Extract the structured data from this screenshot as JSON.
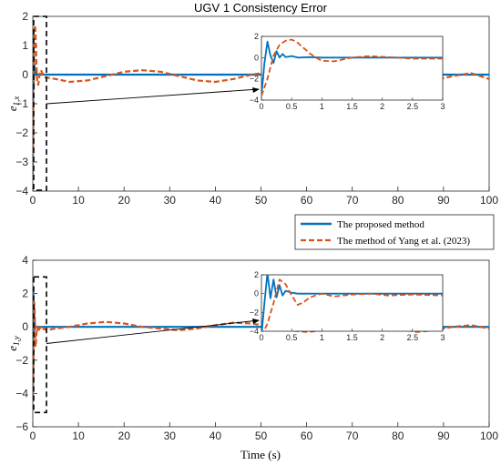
{
  "chart_data": [
    {
      "type": "line",
      "title": "UGV 1 Consistency Error",
      "ylabel_main": "e",
      "ylabel_sub": "1,x",
      "xlim": [
        0,
        100
      ],
      "ylim": [
        -4,
        2
      ],
      "xticks": [
        0,
        10,
        20,
        30,
        40,
        50,
        60,
        70,
        80,
        90,
        100
      ],
      "yticks": [
        -4,
        -3,
        -2,
        -1,
        0,
        1,
        2
      ],
      "zoom_box": {
        "x": [
          0,
          3
        ],
        "y": [
          -4,
          2
        ]
      },
      "series": [
        {
          "name": "The proposed method",
          "color": "#0072BD",
          "style": "solid",
          "x": [
            0,
            0.05,
            0.1,
            0.15,
            0.2,
            0.25,
            0.3,
            0.35,
            0.4,
            0.5,
            0.6,
            0.8,
            1.0,
            1.5,
            2,
            3,
            10,
            20,
            30,
            40,
            50,
            60,
            70,
            80,
            90,
            100
          ],
          "y": [
            -3.6,
            -0.5,
            1.5,
            0.2,
            -0.5,
            0.6,
            0.0,
            0.35,
            0.05,
            0.15,
            0.0,
            0.05,
            0.0,
            0.0,
            0.0,
            0.0,
            0.0,
            0.0,
            0.0,
            0.0,
            0.0,
            0.0,
            0.0,
            0.0,
            0.0,
            0.0
          ]
        },
        {
          "name": "The method of Yang et al. (2023)",
          "color": "#D95319",
          "style": "dashed",
          "x": [
            0,
            0.1,
            0.2,
            0.3,
            0.4,
            0.5,
            0.6,
            0.7,
            0.8,
            0.9,
            1.0,
            1.2,
            1.5,
            1.8,
            2.1,
            2.5,
            3,
            5,
            8,
            12,
            16,
            20,
            24,
            28,
            32,
            36,
            40,
            44,
            48,
            52,
            56,
            60,
            64,
            68,
            72,
            76,
            80,
            84,
            88,
            92,
            96,
            100
          ],
          "y": [
            -3.6,
            -2.0,
            0.2,
            1.2,
            1.6,
            1.7,
            1.4,
            0.9,
            0.4,
            0.0,
            -0.3,
            -0.35,
            0.0,
            0.15,
            0.05,
            -0.1,
            -0.1,
            -0.15,
            -0.25,
            -0.2,
            -0.05,
            0.1,
            0.15,
            0.1,
            -0.05,
            -0.2,
            -0.25,
            -0.15,
            0.0,
            0.1,
            0.05,
            -0.1,
            -0.2,
            -0.15,
            0.05,
            0.2,
            0.1,
            -0.1,
            -0.2,
            -0.05,
            0.05,
            -0.15
          ]
        }
      ],
      "inset": {
        "xlim": [
          0,
          3
        ],
        "ylim": [
          -4,
          2
        ],
        "xticks": [
          0,
          0.5,
          1,
          1.5,
          2,
          2.5,
          3
        ],
        "xtick_labels": [
          "0",
          "0.5",
          "1",
          "1.5",
          "2",
          "2.5",
          "3"
        ],
        "yticks": [
          -4,
          -2,
          0,
          2
        ]
      }
    },
    {
      "type": "line",
      "ylabel_main": "e",
      "ylabel_sub": "1,y",
      "xlabel": "Time (s)",
      "xlim": [
        0,
        100
      ],
      "ylim": [
        -6,
        4
      ],
      "xticks": [
        0,
        10,
        20,
        30,
        40,
        50,
        60,
        70,
        80,
        90,
        100
      ],
      "yticks": [
        -6,
        -4,
        -2,
        0,
        2,
        4
      ],
      "zoom_box": {
        "x": [
          0,
          3
        ],
        "y": [
          -5.2,
          3
        ]
      },
      "series": [
        {
          "name": "The proposed method",
          "color": "#0072BD",
          "style": "solid",
          "x": [
            0,
            0.05,
            0.1,
            0.15,
            0.2,
            0.25,
            0.3,
            0.35,
            0.4,
            0.5,
            0.6,
            0.8,
            1.0,
            1.5,
            2,
            3,
            10,
            20,
            30,
            40,
            50,
            60,
            70,
            80,
            90,
            100
          ],
          "y": [
            -4.5,
            -1.0,
            2.2,
            -0.5,
            1.5,
            -0.4,
            0.9,
            -0.2,
            0.3,
            0.1,
            0.0,
            0.0,
            0.0,
            0.0,
            0.0,
            0.0,
            0.0,
            0.0,
            0.0,
            0.0,
            0.0,
            0.0,
            0.0,
            0.0,
            0.0,
            0.0
          ]
        },
        {
          "name": "The method of Yang et al. (2023)",
          "color": "#D95319",
          "style": "dashed",
          "x": [
            0,
            0.1,
            0.2,
            0.3,
            0.4,
            0.5,
            0.6,
            0.7,
            0.8,
            0.9,
            1.0,
            1.2,
            1.5,
            1.8,
            2.1,
            2.5,
            3,
            5,
            8,
            12,
            16,
            20,
            24,
            28,
            32,
            36,
            40,
            44,
            48,
            52,
            56,
            60,
            64,
            68,
            72,
            76,
            80,
            84,
            88,
            92,
            96,
            100
          ],
          "y": [
            -4.5,
            -3.2,
            -1.0,
            1.5,
            1.0,
            -0.2,
            -1.2,
            -0.9,
            -0.4,
            -0.2,
            0.0,
            -0.3,
            -0.1,
            0.0,
            -0.2,
            -0.1,
            -0.2,
            -0.1,
            0.0,
            0.2,
            0.3,
            0.2,
            0.0,
            -0.1,
            -0.2,
            -0.1,
            0.1,
            0.25,
            0.2,
            0.0,
            -0.2,
            -0.3,
            -0.2,
            0.0,
            0.2,
            0.15,
            -0.1,
            -0.3,
            -0.2,
            0.0,
            0.1,
            -0.1
          ]
        }
      ],
      "inset": {
        "xlim": [
          0,
          3
        ],
        "ylim": [
          -4,
          2
        ],
        "xticks": [
          0,
          0.5,
          1,
          1.5,
          2,
          2.5,
          3
        ],
        "xtick_labels": [
          "0",
          "0.5",
          "1",
          "1.5",
          "2",
          "2.5",
          "3"
        ],
        "yticks": [
          -4,
          -2,
          0,
          2
        ]
      }
    }
  ],
  "legend": [
    {
      "label": "The proposed method",
      "color": "#0072BD",
      "style": "solid"
    },
    {
      "label": "The method of Yang et al. (2023)",
      "color": "#D95319",
      "style": "dashed"
    }
  ]
}
